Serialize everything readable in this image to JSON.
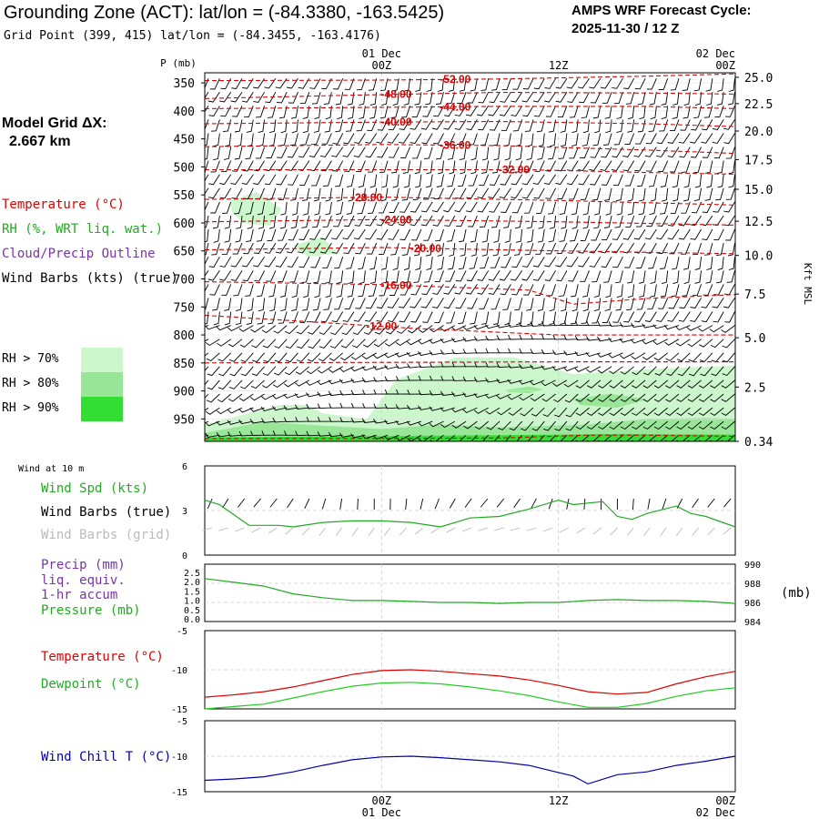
{
  "header": {
    "title": "Grounding Zone (ACT):  lat/lon = (-84.3380, -163.5425)",
    "subtitle": "Grid Point (399, 415) lat/lon = (-84.3455, -163.4176)",
    "cycle_line1": "AMPS WRF Forecast Cycle:",
    "cycle_line2": "2025-11-30 / 12  Z"
  },
  "model_grid": {
    "label": "Model Grid ΔX:",
    "value": "2.667 km"
  },
  "legend": {
    "temperature": "Temperature (°C)",
    "rh": "RH (%, WRT liq. wat.)",
    "cloud": "Cloud/Precip Outline",
    "wind": "Wind Barbs (kts) (true)",
    "rh_bins": [
      {
        "label": "RH > 70%",
        "color": "#ccf7cc"
      },
      {
        "label": "RH > 80%",
        "color": "#99e699"
      },
      {
        "label": "RH > 90%",
        "color": "#33dd33"
      }
    ]
  },
  "time_axis": {
    "top": [
      {
        "day": "01 Dec",
        "hour": "00Z"
      },
      {
        "day": "",
        "hour": "12Z"
      },
      {
        "day": "02 Dec",
        "hour": "00Z"
      }
    ],
    "bottom": [
      {
        "hour": "00Z",
        "day": "01 Dec"
      },
      {
        "hour": "12Z",
        "day": ""
      },
      {
        "hour": "00Z",
        "day": "02 Dec"
      }
    ]
  },
  "colors": {
    "temperature": "#dd0000",
    "rh": "#22aa22",
    "cloud": "#7733aa",
    "pressure": "#22aa22",
    "dewpoint": "#22cc22",
    "windchill": "#0000aa",
    "gridbarb": "#bbbbbb",
    "grid": "#bbbbbb"
  },
  "chart_data": [
    {
      "type": "heatmap",
      "name": "cross-section",
      "ylabel_left": "P (mb)",
      "ylabel_right": "Kft MSL",
      "pressure_ticks": [
        350,
        400,
        450,
        500,
        550,
        600,
        650,
        700,
        750,
        800,
        850,
        900,
        950
      ],
      "height_ticks": [
        "25.0",
        "22.5",
        "20.0",
        "17.5",
        "15.0",
        "12.5",
        "10.0",
        "7.5",
        "5.0",
        "2.5",
        "0.34"
      ],
      "height_tick_pressures": [
        340,
        387,
        436,
        487,
        540,
        597,
        658,
        727,
        805,
        893,
        990
      ],
      "time_hours": [
        0,
        36
      ],
      "time_ticks": [
        12,
        24,
        36
      ],
      "isotherms": [
        {
          "label": "-52.00",
          "label_hour": 17,
          "points": [
            [
              0,
              346
            ],
            [
              12,
              345
            ],
            [
              20,
              343
            ],
            [
              30,
              338
            ],
            [
              36,
              334
            ]
          ]
        },
        {
          "label": "-48.00",
          "label_hour": 13,
          "points": [
            [
              0,
              378
            ],
            [
              10,
              372
            ],
            [
              20,
              367
            ],
            [
              30,
              368
            ],
            [
              36,
              370
            ]
          ]
        },
        {
          "label": "-44.00",
          "label_hour": 17,
          "points": [
            [
              0,
              396
            ],
            [
              10,
              394
            ],
            [
              20,
              392
            ],
            [
              30,
              392
            ],
            [
              36,
              396
            ]
          ]
        },
        {
          "label": "-40.00",
          "label_hour": 13,
          "points": [
            [
              0,
              423
            ],
            [
              12,
              420
            ],
            [
              20,
              419
            ],
            [
              30,
              423
            ],
            [
              36,
              428
            ]
          ]
        },
        {
          "label": "-36.00",
          "label_hour": 17,
          "points": [
            [
              0,
              464
            ],
            [
              12,
              460
            ],
            [
              20,
              462
            ],
            [
              30,
              470
            ],
            [
              36,
              476
            ]
          ]
        },
        {
          "label": "-32.00",
          "label_hour": 21,
          "points": [
            [
              0,
              505
            ],
            [
              12,
              505
            ],
            [
              22,
              505
            ],
            [
              30,
              510
            ],
            [
              36,
              513
            ]
          ]
        },
        {
          "label": "-28.00",
          "label_hour": 11,
          "points": [
            [
              0,
              558
            ],
            [
              12,
              554
            ],
            [
              24,
              560
            ],
            [
              36,
              568
            ]
          ]
        },
        {
          "label": "-24.00",
          "label_hour": 13,
          "points": [
            [
              0,
              598
            ],
            [
              12,
              594
            ],
            [
              24,
              598
            ],
            [
              36,
              604
            ]
          ]
        },
        {
          "label": "-20.00",
          "label_hour": 15,
          "points": [
            [
              0,
              648
            ],
            [
              12,
              644
            ],
            [
              24,
              650
            ],
            [
              36,
              655
            ]
          ]
        },
        {
          "label": "-16.00",
          "label_hour": 13,
          "points": [
            [
              0,
              705
            ],
            [
              12,
              710
            ],
            [
              22,
              720
            ],
            [
              25,
              745
            ],
            [
              30,
              735
            ],
            [
              36,
              728
            ]
          ]
        },
        {
          "label": "-12.00",
          "label_hour": 12,
          "points": [
            [
              0,
              765
            ],
            [
              8,
              778
            ],
            [
              14,
              788
            ],
            [
              24,
              800
            ],
            [
              36,
              800
            ]
          ]
        },
        {
          "label": "",
          "label_hour": 0,
          "points": [
            [
              0,
              850
            ],
            [
              12,
              849
            ],
            [
              24,
              848
            ],
            [
              36,
              848
            ]
          ]
        },
        {
          "label": "",
          "label_hour": 0,
          "points": [
            [
              0,
              985
            ],
            [
              10,
              985
            ],
            [
              20,
              984
            ],
            [
              26,
              979
            ],
            [
              30,
              979
            ],
            [
              36,
              981
            ]
          ]
        }
      ],
      "rh_regions": [
        {
          "level": 1,
          "points": [
            [
              0,
              960
            ],
            [
              3,
              940
            ],
            [
              5,
              925
            ],
            [
              7,
              925
            ],
            [
              8,
              940
            ],
            [
              11,
              950
            ],
            [
              13,
              880
            ],
            [
              17,
              840
            ],
            [
              21,
              840
            ],
            [
              25,
              870
            ],
            [
              31,
              860
            ],
            [
              36,
              855
            ],
            [
              36,
              990
            ],
            [
              0,
              990
            ]
          ]
        },
        {
          "level": 1,
          "points": [
            [
              1.8,
              560
            ],
            [
              3.5,
              545
            ],
            [
              5.2,
              575
            ],
            [
              4.4,
              605
            ],
            [
              2.6,
              600
            ],
            [
              1.8,
              580
            ]
          ]
        },
        {
          "level": 1,
          "points": [
            [
              6,
              640
            ],
            [
              8,
              625
            ],
            [
              9,
              655
            ],
            [
              7,
              660
            ]
          ]
        },
        {
          "level": 2,
          "points": [
            [
              0,
              975
            ],
            [
              4,
              955
            ],
            [
              8,
              962
            ],
            [
              12,
              968
            ],
            [
              16,
              960
            ],
            [
              20,
              965
            ],
            [
              26,
              960
            ],
            [
              30,
              950
            ],
            [
              34,
              948
            ],
            [
              36,
              950
            ],
            [
              36,
              990
            ],
            [
              0,
              990
            ]
          ]
        },
        {
          "level": 2,
          "points": [
            [
              20.5,
              898
            ],
            [
              22,
              892
            ],
            [
              23,
              897
            ],
            [
              22,
              904
            ],
            [
              20.5,
              902
            ]
          ]
        },
        {
          "level": 2,
          "points": [
            [
              25,
              915
            ],
            [
              27.5,
              905
            ],
            [
              30,
              915
            ],
            [
              28,
              930
            ],
            [
              25.5,
              925
            ]
          ]
        },
        {
          "level": 3,
          "points": [
            [
              0,
              983
            ],
            [
              10,
              981
            ],
            [
              20,
              979
            ],
            [
              28,
              977
            ],
            [
              36,
              978
            ],
            [
              36,
              990
            ],
            [
              0,
              990
            ]
          ]
        }
      ]
    },
    {
      "type": "line",
      "name": "wind-10m",
      "panel_label": "Wind at 10 m",
      "ylim": [
        0,
        6
      ],
      "yticks": [
        "6",
        "3",
        "0"
      ],
      "series": [
        {
          "name": "Wind Spd (kts)",
          "color": "#22aa22",
          "x": [
            0,
            1,
            3,
            5,
            6,
            8,
            10,
            12,
            14,
            16,
            18,
            20,
            22,
            24,
            25,
            27,
            28,
            29,
            30,
            32,
            33,
            34,
            36
          ],
          "values": [
            3.7,
            3.4,
            2.0,
            2.0,
            1.9,
            2.2,
            2.3,
            2.3,
            2.2,
            1.9,
            2.5,
            2.6,
            3.1,
            3.7,
            3.4,
            3.6,
            2.6,
            2.4,
            2.8,
            3.3,
            2.8,
            2.6,
            1.9
          ]
        }
      ],
      "legend": [
        "Wind Spd (kts)",
        "Wind Barbs (true)",
        "Wind Barbs (grid)"
      ]
    },
    {
      "type": "line",
      "name": "precip-pressure",
      "left_yticks": [
        "2.5",
        "2.0",
        "1.5",
        "1.0",
        "0.5",
        "0.0"
      ],
      "right_yticks": [
        "990",
        "988",
        "986",
        "984"
      ],
      "right_unit": "(mb)",
      "series": [
        {
          "name": "Pressure (mb)",
          "color": "#22aa22",
          "x": [
            0,
            2,
            4,
            6,
            8,
            10,
            12,
            14,
            16,
            18,
            20,
            22,
            24,
            26,
            28,
            30,
            32,
            34,
            36
          ],
          "values": [
            988.5,
            988.1,
            987.7,
            986.9,
            986.5,
            986.2,
            986.2,
            986.1,
            986.0,
            986.0,
            985.9,
            986.0,
            986.0,
            986.2,
            986.3,
            986.2,
            986.2,
            986.1,
            985.9
          ]
        }
      ],
      "legend": [
        "Precip (mm)",
        "liq. equiv.",
        "1-hr accum",
        "Pressure (mb)"
      ]
    },
    {
      "type": "line",
      "name": "temperature-dewpoint",
      "ylim": [
        -15,
        -5
      ],
      "yticks": [
        "-5",
        "-10",
        "-15"
      ],
      "series": [
        {
          "name": "Temperature (°C)",
          "color": "#dd0000",
          "x": [
            0,
            2,
            4,
            6,
            8,
            10,
            12,
            14,
            16,
            18,
            20,
            22,
            24,
            26,
            28,
            30,
            32,
            34,
            36
          ],
          "values": [
            -13.5,
            -13.2,
            -12.8,
            -12.2,
            -11.4,
            -10.6,
            -10.1,
            -10.0,
            -10.2,
            -10.5,
            -10.8,
            -11.3,
            -12.0,
            -12.8,
            -13.1,
            -12.9,
            -11.8,
            -10.9,
            -10.2
          ]
        },
        {
          "name": "Dewpoint (°C)",
          "color": "#22cc22",
          "x": [
            0,
            2,
            4,
            6,
            8,
            10,
            12,
            14,
            16,
            18,
            20,
            22,
            24,
            26,
            28,
            30,
            32,
            34,
            36
          ],
          "values": [
            -15.0,
            -14.7,
            -14.4,
            -13.6,
            -12.8,
            -12.1,
            -11.7,
            -11.6,
            -11.8,
            -12.2,
            -12.7,
            -13.3,
            -14.1,
            -14.8,
            -14.8,
            -14.3,
            -13.4,
            -12.7,
            -12.3
          ]
        }
      ]
    },
    {
      "type": "line",
      "name": "wind-chill",
      "ylim": [
        -15,
        -5
      ],
      "yticks": [
        "-5",
        "-10",
        "-15"
      ],
      "series": [
        {
          "name": "Wind Chill T (°C)",
          "color": "#0000aa",
          "x": [
            0,
            2,
            4,
            6,
            8,
            10,
            12,
            14,
            16,
            18,
            20,
            22,
            24,
            25,
            26,
            28,
            30,
            32,
            34,
            36
          ],
          "values": [
            -13.4,
            -13.2,
            -12.9,
            -12.2,
            -11.3,
            -10.5,
            -10.1,
            -10.0,
            -10.2,
            -10.5,
            -10.8,
            -11.3,
            -12.3,
            -12.8,
            -13.9,
            -12.6,
            -12.2,
            -11.3,
            -10.7,
            -10.0
          ]
        }
      ]
    }
  ]
}
